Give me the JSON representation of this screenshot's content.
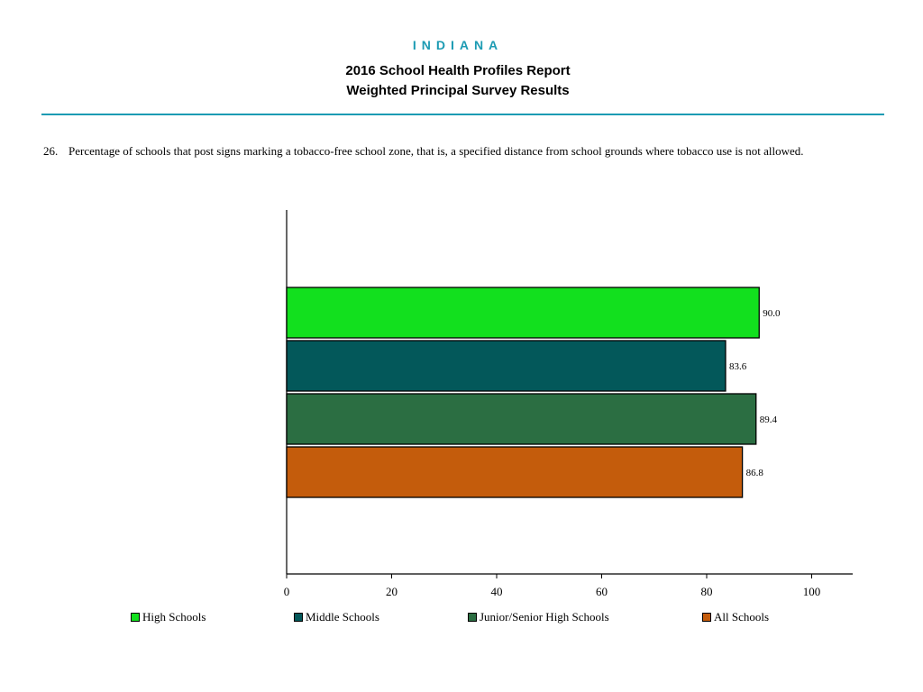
{
  "header": {
    "state": "INDIANA",
    "title_line1": "2016 School Health Profiles Report",
    "title_line2": "Weighted Principal Survey Results"
  },
  "question": {
    "number": "26.",
    "text": "Percentage of schools that post signs marking a tobacco-free school zone, that is, a specified distance from school grounds where tobacco use is not allowed."
  },
  "chart_data": {
    "type": "bar",
    "orientation": "horizontal",
    "categories": [
      "High Schools",
      "Middle Schools",
      "Junior/Senior High Schools",
      "All Schools"
    ],
    "values": [
      90.0,
      83.6,
      89.4,
      86.8
    ],
    "value_labels": [
      "90.0",
      "83.6",
      "89.4",
      "86.8"
    ],
    "colors": [
      "#12e01e",
      "#03585a",
      "#2b6e42",
      "#c45c0c"
    ],
    "xlim": [
      0,
      100
    ],
    "xticks": [
      0,
      20,
      40,
      60,
      80,
      100
    ],
    "xlabel": "",
    "ylabel": "",
    "grid": false,
    "legend_position": "bottom"
  }
}
